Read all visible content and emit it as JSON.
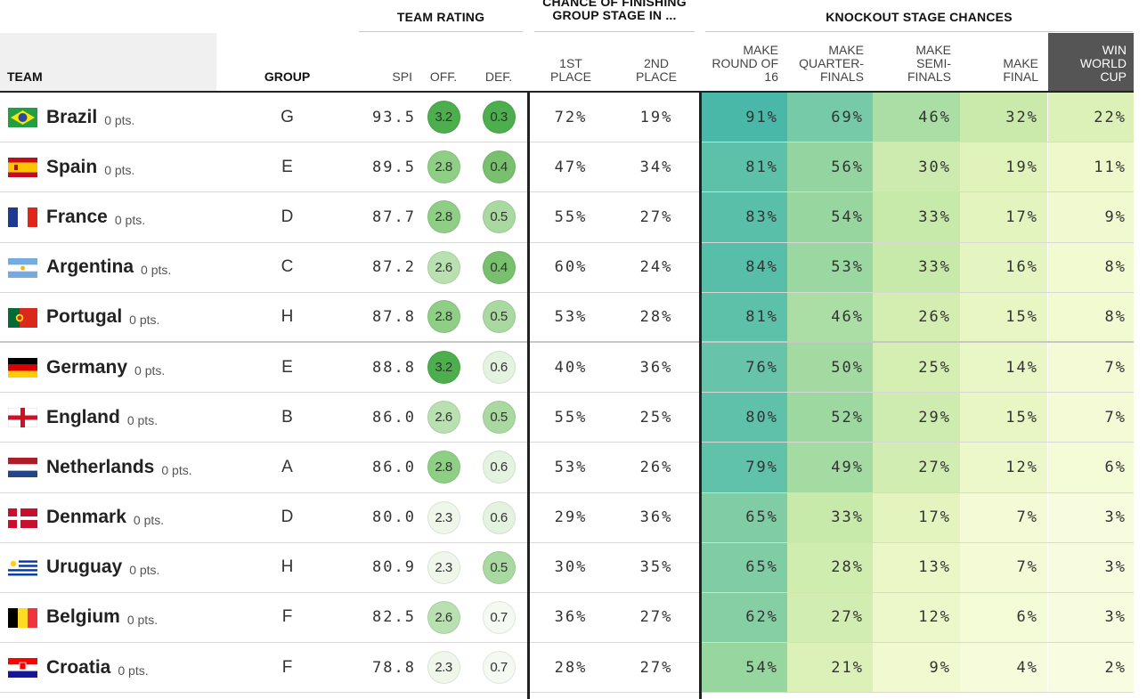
{
  "headers": {
    "team_rating": "TEAM RATING",
    "chance_line1": "CHANCE OF FINISHING",
    "chance_line2": "GROUP STAGE IN ...",
    "knockout": "KNOCKOUT STAGE CHANCES",
    "team": "TEAM",
    "group": "GROUP",
    "spi": "SPI",
    "off": "OFF.",
    "def": "DEF.",
    "first_l1": "1ST",
    "first_l2": "PLACE",
    "second_l1": "2ND",
    "second_l2": "PLACE",
    "r16_l1": "MAKE",
    "r16_l2": "ROUND OF",
    "r16_l3": "16",
    "qf_l1": "MAKE",
    "qf_l2": "QUARTER-",
    "qf_l3": "FINALS",
    "sf_l1": "MAKE",
    "sf_l2": "SEMI-",
    "sf_l3": "FINALS",
    "final_l1": "MAKE",
    "final_l2": "FINAL",
    "win_l1": "WIN",
    "win_l2": "WORLD",
    "win_l3": "CUP"
  },
  "colors": {
    "off_scale": [
      "#eef7ea",
      "#b9e0b0",
      "#8fcf85",
      "#4cae4c"
    ],
    "def_scale": [
      "#eef7ea",
      "#d8efd3",
      "#a9d9a0",
      "#78c06d",
      "#4cae4c"
    ],
    "r16": "#64c2a6",
    "win_header": "#555555"
  },
  "teams": [
    {
      "name": "Brazil",
      "pts": "0 pts.",
      "flag": "brazil-flag-icon",
      "group": "G",
      "spi": "93.5",
      "off": "3.2",
      "def": "0.3",
      "first": "72%",
      "second": "19%",
      "r16": "91%",
      "qf": "69%",
      "sf": "46%",
      "final": "32%",
      "win": "22%"
    },
    {
      "name": "Spain",
      "pts": "0 pts.",
      "flag": "spain-flag-icon",
      "group": "E",
      "spi": "89.5",
      "off": "2.8",
      "def": "0.4",
      "first": "47%",
      "second": "34%",
      "r16": "81%",
      "qf": "56%",
      "sf": "30%",
      "final": "19%",
      "win": "11%"
    },
    {
      "name": "France",
      "pts": "0 pts.",
      "flag": "france-flag-icon",
      "group": "D",
      "spi": "87.7",
      "off": "2.8",
      "def": "0.5",
      "first": "55%",
      "second": "27%",
      "r16": "83%",
      "qf": "54%",
      "sf": "33%",
      "final": "17%",
      "win": "9%"
    },
    {
      "name": "Argentina",
      "pts": "0 pts.",
      "flag": "argentina-flag-icon",
      "group": "C",
      "spi": "87.2",
      "off": "2.6",
      "def": "0.4",
      "first": "60%",
      "second": "24%",
      "r16": "84%",
      "qf": "53%",
      "sf": "33%",
      "final": "16%",
      "win": "8%"
    },
    {
      "name": "Portugal",
      "pts": "0 pts.",
      "flag": "portugal-flag-icon",
      "group": "H",
      "spi": "87.8",
      "off": "2.8",
      "def": "0.5",
      "first": "53%",
      "second": "28%",
      "r16": "81%",
      "qf": "46%",
      "sf": "26%",
      "final": "15%",
      "win": "8%"
    },
    {
      "name": "Germany",
      "pts": "0 pts.",
      "flag": "germany-flag-icon",
      "group": "E",
      "spi": "88.8",
      "off": "3.2",
      "def": "0.6",
      "first": "40%",
      "second": "36%",
      "r16": "76%",
      "qf": "50%",
      "sf": "25%",
      "final": "14%",
      "win": "7%"
    },
    {
      "name": "England",
      "pts": "0 pts.",
      "flag": "england-flag-icon",
      "group": "B",
      "spi": "86.0",
      "off": "2.6",
      "def": "0.5",
      "first": "55%",
      "second": "25%",
      "r16": "80%",
      "qf": "52%",
      "sf": "29%",
      "final": "15%",
      "win": "7%"
    },
    {
      "name": "Netherlands",
      "pts": "0 pts.",
      "flag": "netherlands-flag-icon",
      "group": "A",
      "spi": "86.0",
      "off": "2.8",
      "def": "0.6",
      "first": "53%",
      "second": "26%",
      "r16": "79%",
      "qf": "49%",
      "sf": "27%",
      "final": "12%",
      "win": "6%"
    },
    {
      "name": "Denmark",
      "pts": "0 pts.",
      "flag": "denmark-flag-icon",
      "group": "D",
      "spi": "80.0",
      "off": "2.3",
      "def": "0.6",
      "first": "29%",
      "second": "36%",
      "r16": "65%",
      "qf": "33%",
      "sf": "17%",
      "final": "7%",
      "win": "3%"
    },
    {
      "name": "Uruguay",
      "pts": "0 pts.",
      "flag": "uruguay-flag-icon",
      "group": "H",
      "spi": "80.9",
      "off": "2.3",
      "def": "0.5",
      "first": "30%",
      "second": "35%",
      "r16": "65%",
      "qf": "28%",
      "sf": "13%",
      "final": "7%",
      "win": "3%"
    },
    {
      "name": "Belgium",
      "pts": "0 pts.",
      "flag": "belgium-flag-icon",
      "group": "F",
      "spi": "82.5",
      "off": "2.6",
      "def": "0.7",
      "first": "36%",
      "second": "27%",
      "r16": "62%",
      "qf": "27%",
      "sf": "12%",
      "final": "6%",
      "win": "3%"
    },
    {
      "name": "Croatia",
      "pts": "0 pts.",
      "flag": "croatia-flag-icon",
      "group": "F",
      "spi": "78.8",
      "off": "2.3",
      "def": "0.7",
      "first": "28%",
      "second": "27%",
      "r16": "54%",
      "qf": "21%",
      "sf": "9%",
      "final": "4%",
      "win": "2%"
    }
  ]
}
